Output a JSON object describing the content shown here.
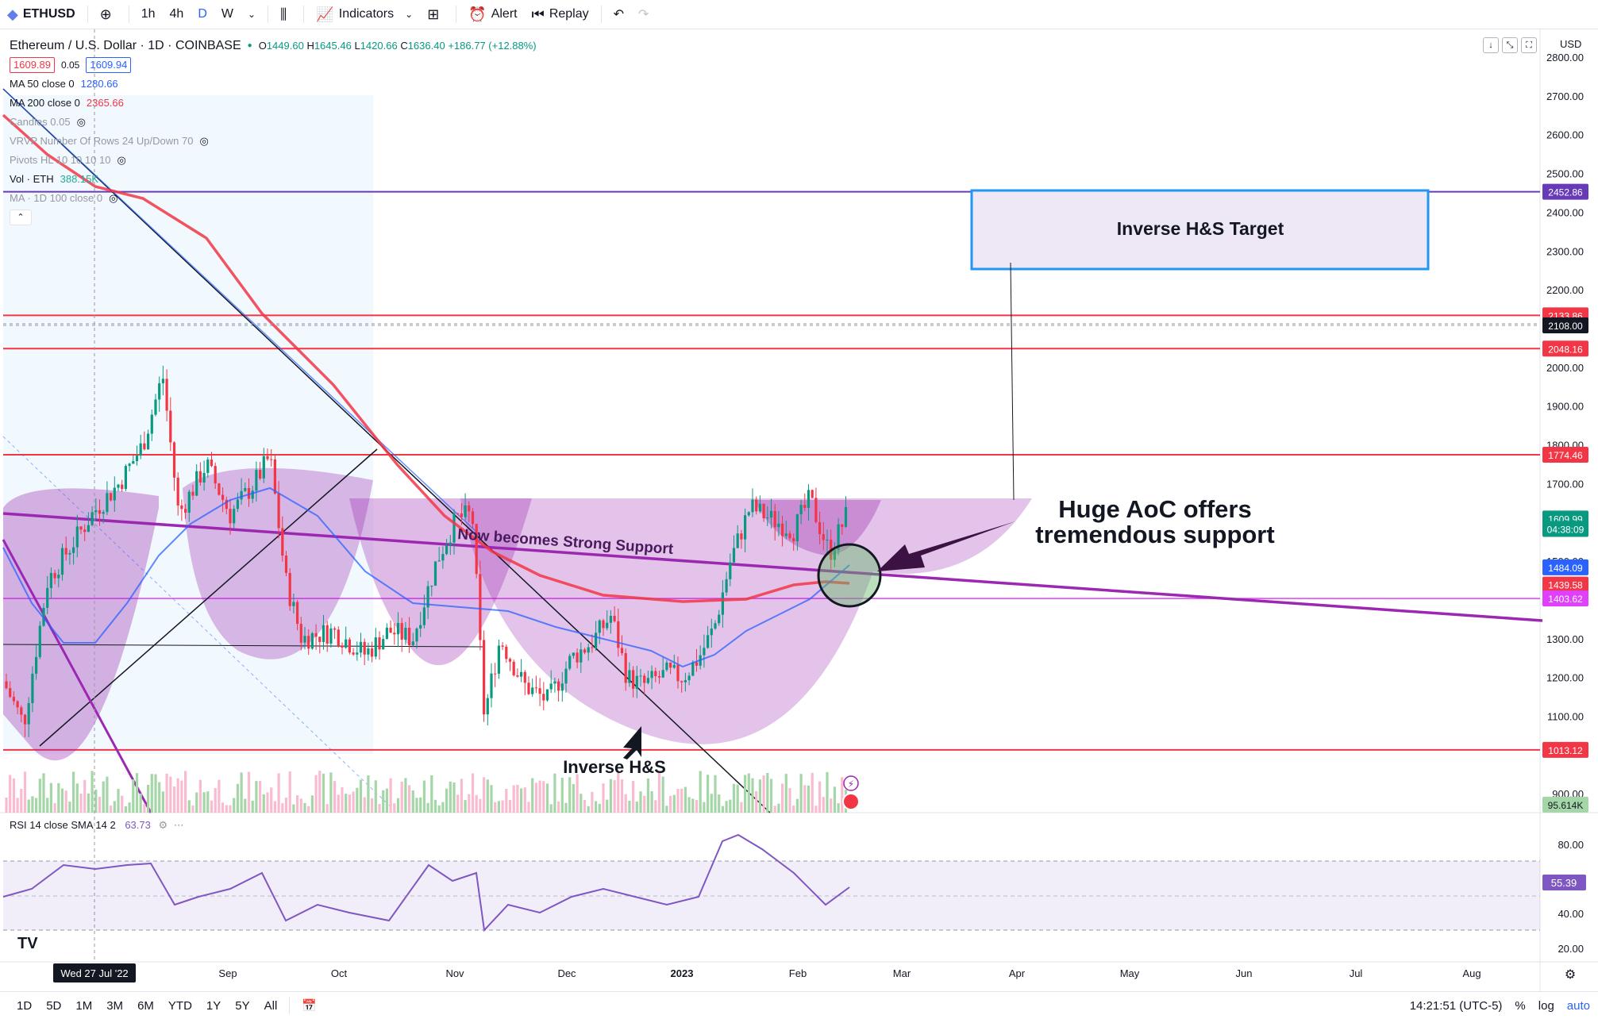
{
  "toolbar": {
    "symbol": "ETHUSD",
    "intervals": [
      "1h",
      "4h",
      "D",
      "W"
    ],
    "active_interval": "D",
    "indicators_label": "Indicators",
    "alert_label": "Alert",
    "replay_label": "Replay"
  },
  "legend": {
    "title": "Ethereum / U.S. Dollar · 1D · COINBASE",
    "ohlc": {
      "o_label": "O",
      "o": "1449.60",
      "h_label": "H",
      "h": "1645.46",
      "l_label": "L",
      "l": "1420.66",
      "c_label": "C",
      "c": "1636.40",
      "change": "+186.77 (+12.88%)"
    },
    "bid": "1609.89",
    "spread": "0.05",
    "ask": "1609.94",
    "indicators": [
      {
        "label": "MA 50 close 0",
        "value": "1280.66",
        "color": "#2962ff"
      },
      {
        "label": "MA 200 close 0",
        "value": "2365.66",
        "color": "#f23645"
      },
      {
        "label": "Candles 0.05",
        "value": "",
        "color": ""
      },
      {
        "label": "VRVP Number Of Rows 24 Up/Down 70",
        "value": "",
        "color": ""
      },
      {
        "label": "Pivots HL 10 10 10 10",
        "value": "",
        "color": ""
      },
      {
        "label": "Vol · ETH",
        "value": "388.15K",
        "color": "#22ab94"
      },
      {
        "label": "MA · 1D 100 close 0",
        "value": "",
        "color": ""
      }
    ]
  },
  "price_axis": {
    "currency": "USD",
    "ticks": [
      "2800.00",
      "2700.00",
      "2600.00",
      "2500.00",
      "2400.00",
      "2300.00",
      "2200.00",
      "2000.00",
      "1900.00",
      "1800.00",
      "1700.00",
      "1500.00",
      "1300.00",
      "1200.00",
      "1100.00",
      "900.00"
    ],
    "labels": [
      {
        "text": "2452.86",
        "price": 2452.86,
        "color": "#673ab7"
      },
      {
        "text": "2133.86",
        "price": 2133.86,
        "color": "#f23645"
      },
      {
        "text": "2108.00",
        "price": 2108.0,
        "color": "#131722"
      },
      {
        "text": "2048.16",
        "price": 2048.16,
        "color": "#f23645"
      },
      {
        "text": "1774.46",
        "price": 1774.46,
        "color": "#f23645"
      },
      {
        "text": "1609.99",
        "price": 1609.99,
        "color": "#089981"
      },
      {
        "text": "04:38:09",
        "price": 1583,
        "color": "#089981"
      },
      {
        "text": "1484.09",
        "price": 1484.09,
        "color": "#2962ff"
      },
      {
        "text": "1439.58",
        "price": 1439.58,
        "color": "#f23645"
      },
      {
        "text": "1403.62",
        "price": 1403.62,
        "color": "#e040fb"
      },
      {
        "text": "1013.12",
        "price": 1013.12,
        "color": "#f23645"
      },
      {
        "text": "95.614K",
        "price": 872,
        "color": "#a5d6a7"
      }
    ]
  },
  "time_axis": {
    "crosshair_label": "Wed 27 Jul '22",
    "labels": [
      "Sep",
      "Oct",
      "Nov",
      "Dec",
      "2023",
      "Feb",
      "Mar",
      "Apr",
      "May",
      "Jun",
      "Jul",
      "Aug"
    ]
  },
  "annotations": {
    "target_box": "Inverse H&S Target",
    "aoc": [
      "Huge AoC offers",
      "tremendous support"
    ],
    "support": "Now becomes Strong Support",
    "pattern": "Inverse H&S"
  },
  "rsi": {
    "label": "RSI 14 close SMA 14 2",
    "value": "63.73",
    "current": "55.39",
    "ticks": [
      "80.00",
      "60.00",
      "40.00",
      "20.00"
    ]
  },
  "bottom": {
    "ranges": [
      "1D",
      "5D",
      "1M",
      "3M",
      "6M",
      "YTD",
      "1Y",
      "5Y",
      "All"
    ],
    "time": "14:21:51 (UTC-5)",
    "percent": "%",
    "log": "log",
    "auto": "auto"
  },
  "chart_data": {
    "type": "candlestick",
    "title": "Ethereum / U.S. Dollar · 1D · COINBASE",
    "x": [
      "2022-07-15",
      "2022-07-27",
      "2022-08-14",
      "2022-09-10",
      "2022-09-21",
      "2022-10-13",
      "2022-11-05",
      "2022-11-09",
      "2022-11-21",
      "2022-12-15",
      "2022-12-30",
      "2023-01-14",
      "2023-01-22",
      "2023-02-03",
      "2023-02-09",
      "2023-02-16"
    ],
    "close": [
      1190,
      1630,
      1980,
      1760,
      1300,
      1290,
      1610,
      1100,
      1150,
      1260,
      1200,
      1550,
      1640,
      1660,
      1540,
      1636
    ],
    "ylim": [
      870,
      2820
    ],
    "horizontal_levels": [
      2452.86,
      2133.86,
      2048.16,
      1774.46,
      1403.62,
      1013.12
    ],
    "ma50_last": 1484.09,
    "ma200_last": 1439.58,
    "rsi_range": [
      20,
      90
    ]
  }
}
